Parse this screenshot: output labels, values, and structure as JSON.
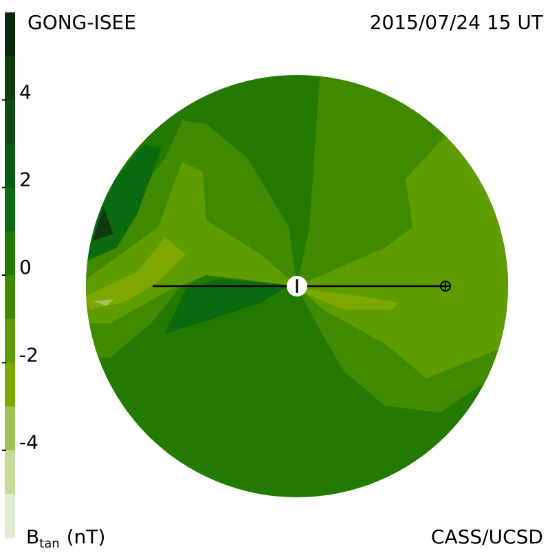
{
  "header": {
    "left": "GONG-ISEE",
    "right": "2015/07/24 15 UT"
  },
  "footer": {
    "right": "CASS/UCSD"
  },
  "colorbar": {
    "label": {
      "main": "B",
      "subscript": "tan",
      "unit": "(nT)"
    },
    "range": [
      -6,
      6
    ],
    "colors": [
      "#0c280c",
      "#0f3a10",
      "#0f4a12",
      "#0a5a12",
      "#0c6a10",
      "#237a00",
      "#3f8a00",
      "#5f9c00",
      "#7ca800",
      "#a2c258",
      "#c6da96",
      "#e2eed0"
    ],
    "ticks": [
      4,
      2,
      0,
      -2,
      -4
    ]
  }
}
